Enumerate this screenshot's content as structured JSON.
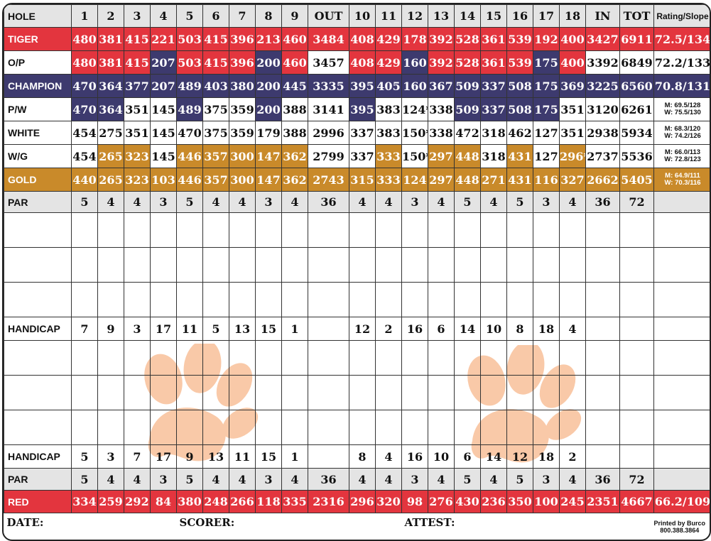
{
  "header": {
    "label": "HOLE",
    "holes": [
      "1",
      "2",
      "3",
      "4",
      "5",
      "6",
      "7",
      "8",
      "9"
    ],
    "out": "OUT",
    "holes_back": [
      "10",
      "11",
      "12",
      "13",
      "14",
      "15",
      "16",
      "17",
      "18"
    ],
    "in": "IN",
    "tot": "TOT",
    "rating": "Rating/Slope"
  },
  "tees": [
    {
      "name": "TIGER",
      "front": [
        "480",
        "381",
        "415",
        "221",
        "503",
        "415",
        "396",
        "213",
        "460"
      ],
      "out": "3484",
      "back": [
        "408",
        "429",
        "178",
        "392",
        "528",
        "361",
        "539",
        "192",
        "400"
      ],
      "in": "3427",
      "tot": "6911",
      "rating": "72.5/134"
    },
    {
      "name": "O/P",
      "front": [
        "480",
        "381",
        "415",
        "207",
        "503",
        "415",
        "396",
        "200",
        "460"
      ],
      "out": "3457",
      "back": [
        "408",
        "429",
        "160",
        "392",
        "528",
        "361",
        "539",
        "175",
        "400"
      ],
      "in": "3392",
      "tot": "6849",
      "rating": "72.2/133"
    },
    {
      "name": "CHAMPION",
      "front": [
        "470",
        "364",
        "377",
        "207",
        "489",
        "403",
        "380",
        "200",
        "445"
      ],
      "out": "3335",
      "back": [
        "395",
        "405",
        "160",
        "367",
        "509",
        "337",
        "508",
        "175",
        "369"
      ],
      "in": "3225",
      "tot": "6560",
      "rating": "70.8/131"
    },
    {
      "name": "P/W",
      "front": [
        "470",
        "364",
        "351",
        "145",
        "489",
        "375",
        "359",
        "200",
        "388"
      ],
      "out": "3141",
      "back": [
        "395",
        "383",
        "124*",
        "338",
        "509",
        "337",
        "508",
        "175",
        "351"
      ],
      "in": "3120",
      "tot": "6261",
      "rating_m": "M: 69.5/128",
      "rating_w": "W: 75.5/130"
    },
    {
      "name": "WHITE",
      "front": [
        "454",
        "275",
        "351",
        "145",
        "470",
        "375",
        "359",
        "179",
        "388"
      ],
      "out": "2996",
      "back": [
        "337",
        "383",
        "150*",
        "338",
        "472",
        "318",
        "462",
        "127",
        "351"
      ],
      "in": "2938",
      "tot": "5934",
      "rating_m": "M: 68.3/120",
      "rating_w": "W: 74.2/126"
    },
    {
      "name": "W/G",
      "front": [
        "454",
        "265",
        "323",
        "145",
        "446",
        "357",
        "300",
        "147",
        "362"
      ],
      "out": "2799",
      "back": [
        "337",
        "333",
        "150*",
        "297",
        "448",
        "318",
        "431",
        "127",
        "296*"
      ],
      "in": "2737",
      "tot": "5536",
      "rating_m": "M: 66.0/113",
      "rating_w": "W: 72.8/123"
    },
    {
      "name": "GOLD",
      "front": [
        "440",
        "265",
        "323",
        "103",
        "446",
        "357",
        "300",
        "147",
        "362"
      ],
      "out": "2743",
      "back": [
        "315",
        "333",
        "124",
        "297",
        "448",
        "271",
        "431",
        "116",
        "327"
      ],
      "in": "2662",
      "tot": "5405",
      "rating_m": "M: 64.9/111",
      "rating_w": "W: 70.3/116"
    }
  ],
  "par_top": {
    "label": "PAR",
    "front": [
      "5",
      "4",
      "4",
      "3",
      "5",
      "4",
      "4",
      "3",
      "4"
    ],
    "out": "36",
    "back": [
      "4",
      "4",
      "3",
      "4",
      "5",
      "4",
      "5",
      "3",
      "4"
    ],
    "in": "36",
    "tot": "72"
  },
  "handicap_1": {
    "label": "HANDICAP",
    "front": [
      "7",
      "9",
      "3",
      "17",
      "11",
      "5",
      "13",
      "15",
      "1"
    ],
    "back": [
      "12",
      "2",
      "16",
      "6",
      "14",
      "10",
      "8",
      "18",
      "4"
    ]
  },
  "handicap_2": {
    "label": "HANDICAP",
    "front": [
      "5",
      "3",
      "7",
      "17",
      "9",
      "13",
      "11",
      "15",
      "1"
    ],
    "back": [
      "8",
      "4",
      "16",
      "10",
      "6",
      "14",
      "12",
      "18",
      "2"
    ]
  },
  "par_bottom": {
    "label": "PAR",
    "front": [
      "5",
      "4",
      "4",
      "3",
      "5",
      "4",
      "4",
      "3",
      "4"
    ],
    "out": "36",
    "back": [
      "4",
      "4",
      "3",
      "4",
      "5",
      "4",
      "5",
      "3",
      "4"
    ],
    "in": "36",
    "tot": "72"
  },
  "red": {
    "name": "RED",
    "front": [
      "334",
      "259",
      "292",
      "84",
      "380",
      "248",
      "266",
      "118",
      "335"
    ],
    "out": "2316",
    "back": [
      "296",
      "320",
      "98",
      "276",
      "430",
      "236",
      "350",
      "100",
      "245"
    ],
    "in": "2351",
    "tot": "4667",
    "rating": "66.2/109"
  },
  "footer": {
    "date": "DATE:",
    "scorer": "SCORER:",
    "attest": "ATTEST:",
    "printed_1": "Printed by Burco",
    "printed_2": "800.388.3864"
  },
  "colors": {
    "tiger_red": "#e3353e",
    "champion_navy": "#3d3a6e",
    "gold": "#c98a2a",
    "par_gray": "#e4e4e4",
    "paw_orange": "#f9c9a8"
  }
}
